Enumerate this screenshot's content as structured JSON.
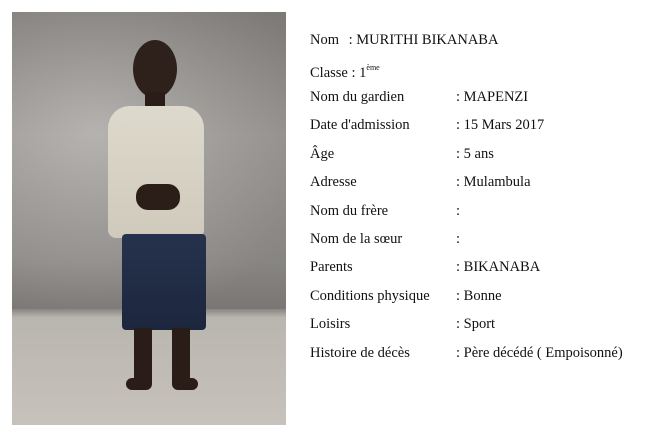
{
  "photo": {
    "alt": "child-portrait"
  },
  "header_rows": [
    {
      "label": "Nom",
      "value": ": MURITHI  BIKANABA"
    },
    {
      "label": "Classe : 1",
      "sup": "ème"
    }
  ],
  "fields": [
    {
      "label": "Nom du gardien",
      "value": ": MAPENZI"
    },
    {
      "label": "Date d'admission",
      "value": ": 15 Mars 2017"
    },
    {
      "label": "Âge",
      "value": ": 5 ans"
    },
    {
      "label": "Adresse",
      "value": ": Mulambula"
    },
    {
      "label": "Nom du frère",
      "value": ":"
    },
    {
      "label": "Nom de la sœur",
      "value": ":"
    },
    {
      "label": "Parents",
      "value": ": BIKANABA"
    },
    {
      "label": "Conditions physique",
      "value": ":  Bonne"
    },
    {
      "label": "Loisirs",
      "value": ": Sport"
    },
    {
      "label": "Histoire de décès",
      "value": ": Père décédé ( Empoisonné)"
    }
  ]
}
